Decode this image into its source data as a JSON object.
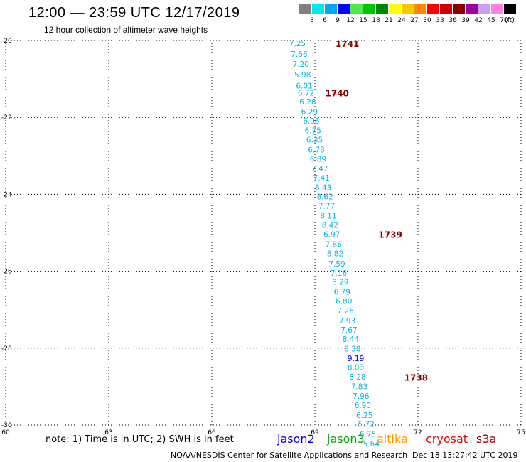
{
  "header": {
    "title": "12:00 — 23:59 UTC 12/17/2019",
    "subtitle": "12 hour collection of altimeter wave heights"
  },
  "legend": {
    "unit": "(ft)",
    "bins": [
      {
        "label": "3",
        "color": "#808080"
      },
      {
        "label": "6",
        "color": "#00e8e8"
      },
      {
        "label": "9",
        "color": "#00a8f0"
      },
      {
        "label": "12",
        "color": "#0000ff"
      },
      {
        "label": "15",
        "color": "#50e850"
      },
      {
        "label": "18",
        "color": "#00c800"
      },
      {
        "label": "21",
        "color": "#008800"
      },
      {
        "label": "24",
        "color": "#ffff00"
      },
      {
        "label": "27",
        "color": "#f8c800"
      },
      {
        "label": "30",
        "color": "#ff8800"
      },
      {
        "label": "33",
        "color": "#ff0000"
      },
      {
        "label": "36",
        "color": "#d00000"
      },
      {
        "label": "39",
        "color": "#880000"
      },
      {
        "label": "42",
        "color": "#a000a0"
      },
      {
        "label": "45",
        "color": "#c8a0f0"
      },
      {
        "label": "70",
        "color": "#ff80e0"
      },
      {
        "label": "",
        "color": "#000000"
      }
    ]
  },
  "map": {
    "lon_ticks": [
      "60",
      "63",
      "66",
      "69",
      "72",
      "75"
    ],
    "lat_ticks": [
      "-20",
      "-22",
      "-24",
      "-26",
      "-28",
      "-30"
    ],
    "lon_values": [
      60,
      63,
      66,
      69,
      72,
      75
    ],
    "lat_values": [
      -20,
      -22,
      -24,
      -26,
      -28,
      -30
    ],
    "lon_range": [
      60,
      75
    ],
    "lat_range": [
      -20,
      -30
    ],
    "point_color": "#00b8e8",
    "highlight_color": "#0000cc",
    "time_color": "#880000",
    "points": [
      {
        "lon": 68.25,
        "lat": -20.07,
        "label": "7.25"
      },
      {
        "lon": 68.3,
        "lat": -20.35,
        "label": "7.66"
      },
      {
        "lon": 68.35,
        "lat": -20.61,
        "label": "7.20"
      },
      {
        "lon": 68.4,
        "lat": -20.89,
        "label": "5.98"
      },
      {
        "lon": 68.45,
        "lat": -21.17,
        "label": "6.01"
      },
      {
        "lon": 68.5,
        "lat": -21.36,
        "label": "6.72"
      },
      {
        "lon": 68.55,
        "lat": -21.59,
        "label": "6.28"
      },
      {
        "lon": 68.6,
        "lat": -21.85,
        "label": "6.29"
      },
      {
        "lon": 68.65,
        "lat": -22.09,
        "label": "6.06"
      },
      {
        "lon": 68.7,
        "lat": -22.34,
        "label": "6.75"
      },
      {
        "lon": 68.75,
        "lat": -22.58,
        "label": "6.35"
      },
      {
        "lon": 68.8,
        "lat": -22.84,
        "label": "6.78"
      },
      {
        "lon": 68.85,
        "lat": -23.08,
        "label": "6.89"
      },
      {
        "lon": 68.9,
        "lat": -23.33,
        "label": "7.47"
      },
      {
        "lon": 68.95,
        "lat": -23.57,
        "label": "7.41"
      },
      {
        "lon": 69.0,
        "lat": -23.82,
        "label": "8.43"
      },
      {
        "lon": 69.05,
        "lat": -24.06,
        "label": "8.62"
      },
      {
        "lon": 69.1,
        "lat": -24.3,
        "label": "7.77"
      },
      {
        "lon": 69.15,
        "lat": -24.56,
        "label": "8.11"
      },
      {
        "lon": 69.2,
        "lat": -24.8,
        "label": "8.42"
      },
      {
        "lon": 69.25,
        "lat": -25.04,
        "label": "6.97"
      },
      {
        "lon": 69.3,
        "lat": -25.3,
        "label": "7.86"
      },
      {
        "lon": 69.35,
        "lat": -25.54,
        "label": "8.82"
      },
      {
        "lon": 69.4,
        "lat": -25.8,
        "label": "7.59"
      },
      {
        "lon": 69.45,
        "lat": -26.04,
        "label": "7.16"
      },
      {
        "lon": 69.5,
        "lat": -26.28,
        "label": "8.29"
      },
      {
        "lon": 69.55,
        "lat": -26.53,
        "label": "6.79"
      },
      {
        "lon": 69.6,
        "lat": -26.77,
        "label": "6.80"
      },
      {
        "lon": 69.65,
        "lat": -27.02,
        "label": "7.26"
      },
      {
        "lon": 69.7,
        "lat": -27.28,
        "label": "7.93"
      },
      {
        "lon": 69.75,
        "lat": -27.52,
        "label": "7.67"
      },
      {
        "lon": 69.8,
        "lat": -27.76,
        "label": "8.44"
      },
      {
        "lon": 69.85,
        "lat": -28.01,
        "label": "8.38"
      },
      {
        "lon": 69.95,
        "lat": -28.26,
        "label": "9.19",
        "highlight": true
      },
      {
        "lon": 69.95,
        "lat": -28.49,
        "label": "8.03"
      },
      {
        "lon": 70.0,
        "lat": -28.74,
        "label": "8.28"
      },
      {
        "lon": 70.05,
        "lat": -28.99,
        "label": "7.83"
      },
      {
        "lon": 70.1,
        "lat": -29.24,
        "label": "7.96"
      },
      {
        "lon": 70.15,
        "lat": -29.48,
        "label": "6.90"
      },
      {
        "lon": 70.2,
        "lat": -29.74,
        "label": "6.25"
      },
      {
        "lon": 70.25,
        "lat": -29.97,
        "label": "5.72"
      },
      {
        "lon": 70.3,
        "lat": -30.23,
        "label": "6.75"
      },
      {
        "lon": 70.4,
        "lat": -30.48,
        "label": "5.64"
      }
    ],
    "time_labels": [
      {
        "lon": 69.6,
        "lat": -20.07,
        "label": "1741"
      },
      {
        "lon": 69.3,
        "lat": -21.36,
        "label": "1740"
      },
      {
        "lon": 70.85,
        "lat": -25.04,
        "label": "1739"
      },
      {
        "lon": 71.6,
        "lat": -28.75,
        "label": "1738"
      }
    ]
  },
  "footer": {
    "note": "note: 1) Time is in UTC; 2) SWH is in feet",
    "satellites": [
      {
        "name": "jason2",
        "color": "#0000dd"
      },
      {
        "name": "jason3",
        "color": "#00aa00"
      },
      {
        "name": "altika",
        "color": "#ff9900"
      },
      {
        "name": "cryosat",
        "color": "#ee0000"
      },
      {
        "name": "s3a",
        "color": "#aa0000"
      }
    ],
    "credit": "NOAA/NESDIS Center for Satellite Applications and Research",
    "timestamp": "Dec 18 13:27:42 UTC 2019"
  }
}
